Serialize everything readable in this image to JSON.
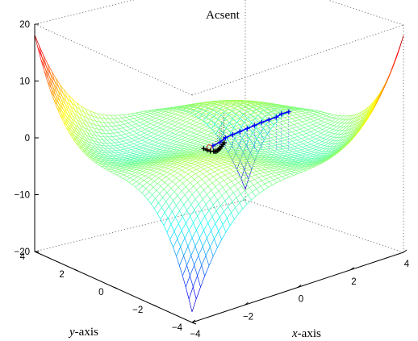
{
  "chart_data": {
    "type": "surface",
    "title": "Acsent",
    "xlabel": "x",
    "xlabel_suffix": "-axis",
    "ylabel": "y",
    "ylabel_suffix": "-axis",
    "zlabel": "",
    "xlim": [
      -4,
      4
    ],
    "ylim": [
      -4,
      4
    ],
    "zlim": [
      -20,
      20
    ],
    "x_ticks": [
      "−4",
      "−2",
      "0",
      "2",
      "4"
    ],
    "y_ticks": [
      "−4",
      "−2",
      "0",
      "2",
      "4"
    ],
    "z_ticks": [
      "−20",
      "−10",
      "0",
      "10",
      "20"
    ],
    "grid": false,
    "box": true,
    "colormap": "jet",
    "surface": "z ≈ x·y·(1 − x²/15 − y²/15)",
    "mesh_resolution": 50,
    "ascent_path": {
      "series_a_color": "#0000ff",
      "series_a_marker": "+",
      "series_a_points": [
        [
          -0.6,
          -0.5,
          1.0
        ],
        [
          -0.4,
          -0.6,
          1.5
        ],
        [
          -0.2,
          -0.6,
          2.0
        ],
        [
          0.0,
          -0.7,
          2.4
        ],
        [
          0.2,
          -0.8,
          2.8
        ],
        [
          0.4,
          -0.9,
          3.2
        ],
        [
          0.6,
          -1.0,
          3.6
        ],
        [
          0.8,
          -1.1,
          4.0
        ],
        [
          1.0,
          -1.2,
          4.3
        ],
        [
          1.2,
          -1.3,
          4.6
        ],
        [
          1.4,
          -1.3,
          4.9
        ],
        [
          1.6,
          -1.4,
          5.1
        ]
      ],
      "series_b_color": "#000000",
      "series_b_marker": "+",
      "series_b_points": [
        [
          -0.8,
          -0.3,
          0.5
        ],
        [
          -0.6,
          -0.2,
          -0.2
        ],
        [
          -0.4,
          -0.1,
          -0.8
        ],
        [
          -0.2,
          0.0,
          -1.2
        ],
        [
          0.0,
          0.2,
          -1.8
        ],
        [
          0.2,
          0.4,
          -2.3
        ],
        [
          0.4,
          0.6,
          -2.7
        ],
        [
          0.6,
          0.8,
          -3.0
        ],
        [
          0.8,
          1.0,
          -3.3
        ],
        [
          1.0,
          1.2,
          -3.5
        ],
        [
          1.2,
          1.4,
          -3.7
        ],
        [
          1.4,
          1.6,
          -3.9
        ]
      ],
      "origin_color": "#d03030"
    }
  }
}
